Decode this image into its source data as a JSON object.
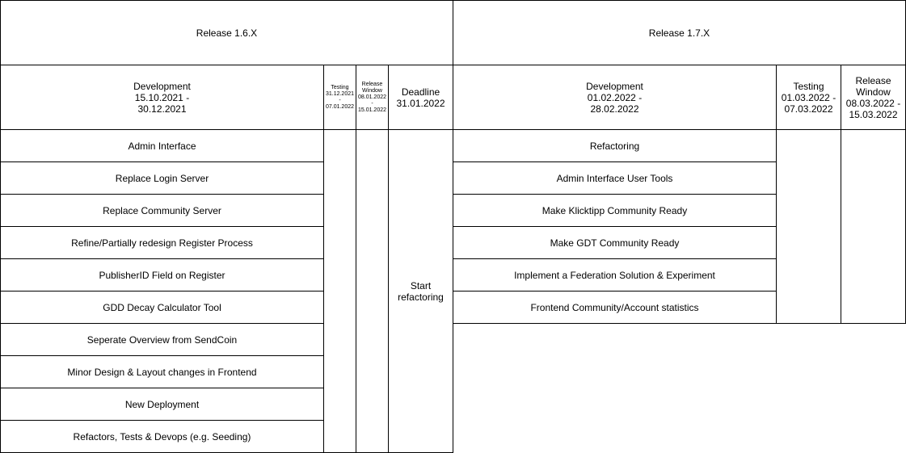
{
  "releases": [
    {
      "title": "Release 1.6.X",
      "development": "Development\n15.10.2021 -\n30.12.2021",
      "testing": "Testing\n31.12.2021\n-\n07.01.2022",
      "release_window": "Release\nWindow\n08.01.2022\n-\n15.01.2022",
      "deadline": "Deadline\n31.01.2022",
      "deadline_note": "Start\nrefactoring",
      "items": [
        "Admin Interface",
        "Replace Login Server",
        "Replace Community Server",
        "Refine/Partially redesign Register Process",
        "PublisherID Field on Register",
        "GDD Decay Calculator Tool",
        "Seperate Overview from SendCoin",
        "Minor Design & Layout changes in Frontend",
        "New Deployment",
        "Refactors, Tests & Devops (e.g. Seeding)"
      ]
    },
    {
      "title": "Release 1.7.X",
      "development": "Development\n01.02.2022 -\n28.02.2022",
      "testing": "Testing\n01.03.2022 -\n07.03.2022",
      "release_window": "Release\nWindow\n08.03.2022 -\n15.03.2022",
      "items": [
        "Refactoring",
        "Admin Interface User Tools",
        "Make Klicktipp Community Ready",
        "Make GDT Community Ready",
        "Implement a Federation Solution & Experiment",
        "Frontend Community/Account statistics"
      ]
    }
  ]
}
